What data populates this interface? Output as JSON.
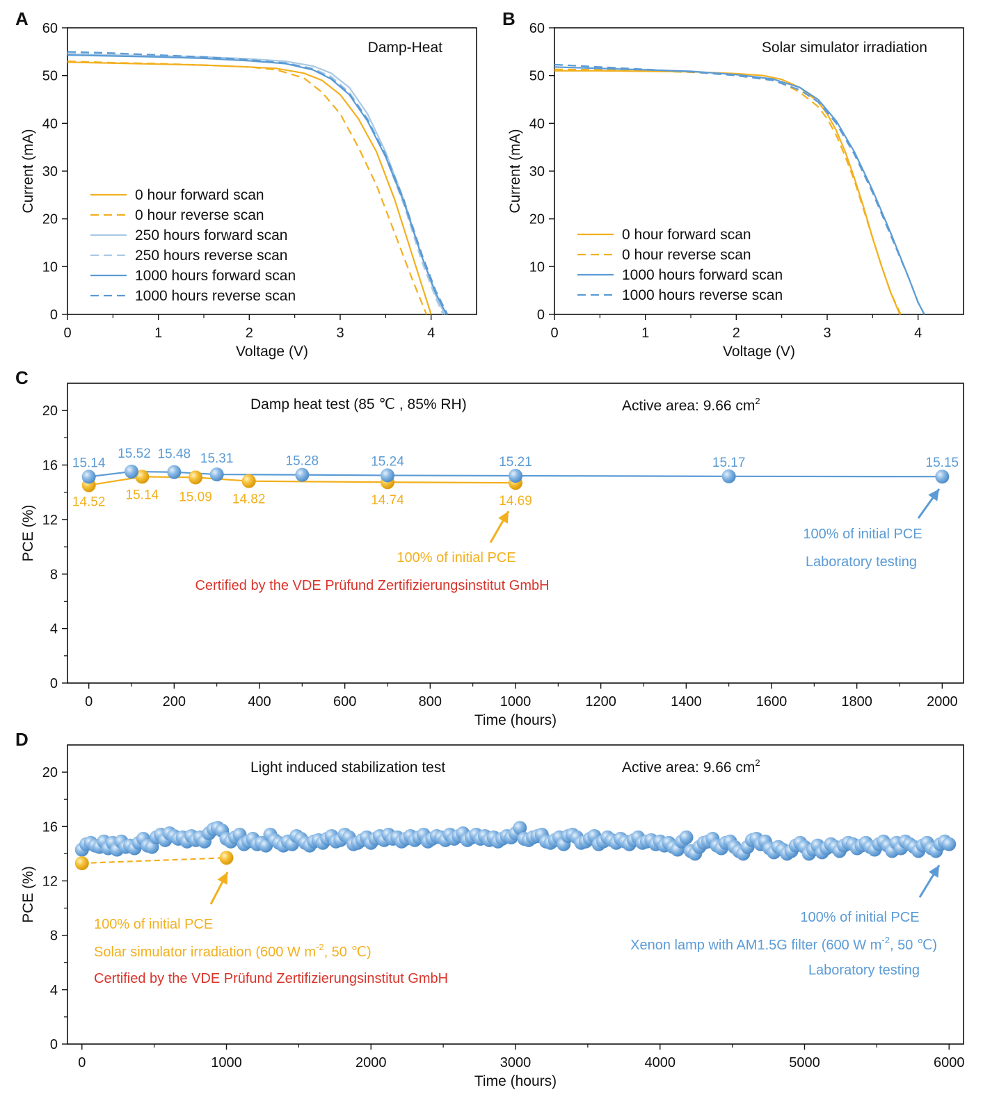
{
  "colors": {
    "yellow": "#f2b01e",
    "blue": "#5b9bd5",
    "lightblue": "#a9c9e4",
    "red": "#d9342b",
    "axis": "#111111"
  },
  "chart_data": [
    {
      "id": "A",
      "type": "line",
      "panel_label": "A",
      "title": "Damp-Heat",
      "xlabel": "Voltage (V)",
      "ylabel": "Current (mA)",
      "xlim": [
        0,
        4.5
      ],
      "ylim": [
        0,
        60
      ],
      "xticks": [
        0,
        1,
        2,
        3,
        4
      ],
      "yticks": [
        0,
        10,
        20,
        30,
        40,
        50,
        60
      ],
      "grid": false,
      "legend_position": "bottom-left",
      "series": [
        {
          "name": "0 hour forward scan",
          "color": "yellow",
          "dash": false,
          "x": [
            0,
            0.5,
            1,
            1.5,
            2,
            2.3,
            2.6,
            2.8,
            3.0,
            3.2,
            3.4,
            3.6,
            3.8,
            3.9,
            4.0
          ],
          "y": [
            52.8,
            52.6,
            52.4,
            52.2,
            51.8,
            51.5,
            50.5,
            49.0,
            46.0,
            41.0,
            34.0,
            24.0,
            12.0,
            6.0,
            0
          ]
        },
        {
          "name": "0 hour reverse scan",
          "color": "yellow",
          "dash": true,
          "x": [
            0,
            0.5,
            1,
            1.5,
            2,
            2.3,
            2.6,
            2.8,
            3.0,
            3.2,
            3.4,
            3.6,
            3.8,
            3.95
          ],
          "y": [
            53.0,
            52.7,
            52.5,
            52.2,
            51.8,
            51.2,
            49.5,
            46.5,
            42.0,
            35.0,
            27.0,
            17.0,
            7.0,
            0
          ]
        },
        {
          "name": "250 hours forward scan",
          "color": "lightblue",
          "dash": false,
          "x": [
            0,
            0.5,
            1,
            1.5,
            2,
            2.4,
            2.7,
            2.9,
            3.1,
            3.3,
            3.5,
            3.7,
            3.9,
            4.05,
            4.15
          ],
          "y": [
            54.5,
            54.3,
            54.1,
            53.9,
            53.5,
            53.0,
            52.0,
            50.5,
            47.5,
            42.0,
            34.0,
            24.0,
            12.0,
            4.0,
            0
          ]
        },
        {
          "name": "250 hours reverse scan",
          "color": "lightblue",
          "dash": true,
          "x": [
            0,
            0.5,
            1,
            1.5,
            2,
            2.4,
            2.7,
            2.9,
            3.1,
            3.3,
            3.5,
            3.7,
            3.9,
            4.05,
            4.13
          ],
          "y": [
            54.8,
            54.5,
            54.2,
            53.9,
            53.4,
            52.7,
            51.5,
            49.8,
            46.5,
            41.0,
            33.0,
            23.0,
            11.0,
            3.5,
            0
          ]
        },
        {
          "name": "1000 hours forward scan",
          "color": "blue",
          "dash": false,
          "x": [
            0,
            0.5,
            1,
            1.5,
            2,
            2.4,
            2.7,
            2.9,
            3.1,
            3.3,
            3.5,
            3.7,
            3.9,
            4.05,
            4.17
          ],
          "y": [
            54.3,
            54.1,
            53.9,
            53.6,
            53.1,
            52.5,
            51.2,
            49.3,
            46.0,
            40.5,
            33.0,
            23.5,
            12.0,
            4.5,
            0
          ]
        },
        {
          "name": "1000 hours reverse scan",
          "color": "blue",
          "dash": true,
          "x": [
            0,
            0.5,
            1,
            1.5,
            2,
            2.4,
            2.7,
            2.9,
            3.1,
            3.3,
            3.5,
            3.7,
            3.9,
            4.05,
            4.18
          ],
          "y": [
            55.0,
            54.7,
            54.3,
            53.9,
            53.3,
            52.6,
            51.3,
            49.4,
            46.2,
            40.8,
            33.4,
            24.0,
            12.5,
            5.0,
            0
          ]
        }
      ]
    },
    {
      "id": "B",
      "type": "line",
      "panel_label": "B",
      "title": "Solar simulator  irradiation",
      "xlabel": "Voltage (V)",
      "ylabel": "Current (mA)",
      "xlim": [
        0,
        4.5
      ],
      "ylim": [
        0,
        60
      ],
      "xticks": [
        0,
        1,
        2,
        3,
        4
      ],
      "yticks": [
        0,
        10,
        20,
        30,
        40,
        50,
        60
      ],
      "grid": false,
      "legend_position": "bottom-left",
      "series": [
        {
          "name": "0 hour forward scan",
          "color": "yellow",
          "dash": false,
          "x": [
            0,
            0.5,
            1,
            1.5,
            2,
            2.3,
            2.5,
            2.7,
            2.9,
            3.0,
            3.1,
            3.2,
            3.3,
            3.4,
            3.5,
            3.6,
            3.7,
            3.8
          ],
          "y": [
            51.0,
            51.0,
            50.9,
            50.8,
            50.4,
            50.0,
            49.2,
            47.5,
            44.5,
            42.0,
            38.5,
            34.0,
            28.5,
            22.5,
            16.0,
            10.0,
            4.5,
            0
          ]
        },
        {
          "name": "0 hour reverse scan",
          "color": "yellow",
          "dash": true,
          "x": [
            0,
            0.5,
            1,
            1.5,
            2,
            2.3,
            2.5,
            2.7,
            2.9,
            3.0,
            3.1,
            3.2,
            3.3,
            3.4,
            3.5,
            3.6,
            3.7,
            3.81
          ],
          "y": [
            51.3,
            51.2,
            51.0,
            50.7,
            50.2,
            49.5,
            48.5,
            46.5,
            43.5,
            41.0,
            37.5,
            33.0,
            28.0,
            22.0,
            16.0,
            10.0,
            4.5,
            0
          ]
        },
        {
          "name": "1000 hours forward scan",
          "color": "blue",
          "dash": false,
          "x": [
            0,
            0.5,
            1,
            1.5,
            2,
            2.4,
            2.7,
            2.9,
            3.1,
            3.3,
            3.5,
            3.7,
            3.9,
            4.0,
            4.07
          ],
          "y": [
            51.8,
            51.5,
            51.2,
            50.9,
            50.2,
            49.3,
            47.5,
            45.0,
            40.5,
            34.0,
            26.0,
            17.0,
            7.5,
            2.5,
            0
          ]
        },
        {
          "name": "1000 hours reverse scan",
          "color": "blue",
          "dash": true,
          "x": [
            0,
            0.5,
            1,
            1.5,
            2,
            2.4,
            2.7,
            2.9,
            3.1,
            3.3,
            3.5,
            3.7,
            3.9,
            4.0,
            4.07
          ],
          "y": [
            52.3,
            51.8,
            51.3,
            50.8,
            50.0,
            49.0,
            47.0,
            44.5,
            40.0,
            33.5,
            25.5,
            16.5,
            7.5,
            2.5,
            0
          ]
        }
      ]
    },
    {
      "id": "C",
      "type": "scatter",
      "panel_label": "C",
      "xlabel": "Time (hours)",
      "ylabel": "PCE (%)",
      "xlim": [
        -50,
        2050
      ],
      "ylim": [
        0,
        22
      ],
      "xticks": [
        0,
        200,
        400,
        600,
        800,
        1000,
        1200,
        1400,
        1600,
        1800,
        2000
      ],
      "yticks": [
        0,
        4,
        8,
        12,
        16,
        20
      ],
      "grid": false,
      "title_left": "Damp heat test (85 ℃ , 85% RH)",
      "title_right_main": "Active area: 9.66 cm",
      "title_right_sup": "2",
      "series": [
        {
          "name": "Certified",
          "color": "yellow",
          "x": [
            0,
            125,
            250,
            375,
            700,
            1000
          ],
          "y": [
            14.52,
            15.14,
            15.09,
            14.82,
            14.74,
            14.69
          ],
          "labels": [
            "14.52",
            "15.14",
            "15.09",
            "14.82",
            "14.74",
            "14.69"
          ]
        },
        {
          "name": "Laboratory",
          "color": "blue",
          "x": [
            0,
            100,
            200,
            300,
            500,
            700,
            1000,
            1500,
            2000
          ],
          "y": [
            15.14,
            15.52,
            15.48,
            15.31,
            15.28,
            15.24,
            15.21,
            15.17,
            15.15
          ],
          "labels": [
            "15.14",
            "15.52",
            "15.48",
            "15.31",
            "15.28",
            "15.24",
            "15.21",
            "15.17",
            "15.15"
          ]
        }
      ],
      "annotations": {
        "yellow_pce": "100% of initial PCE",
        "certified": "Certified by the VDE Prüfund Zertifizierungsinstitut GmbH",
        "blue_pce": "100% of initial PCE",
        "lab": "Laboratory testing"
      }
    },
    {
      "id": "D",
      "type": "scatter",
      "panel_label": "D",
      "xlabel": "Time (hours)",
      "ylabel": "PCE (%)",
      "xlim": [
        -100,
        6100
      ],
      "ylim": [
        0,
        22
      ],
      "xticks": [
        0,
        1000,
        2000,
        3000,
        4000,
        5000,
        6000
      ],
      "yticks": [
        0,
        4,
        8,
        12,
        16,
        20
      ],
      "grid": false,
      "title_left": "Light induced stabilization test",
      "title_right_main": "Active area: 9.66 cm",
      "title_right_sup": "2",
      "series": [
        {
          "name": "Certified",
          "color": "yellow",
          "x": [
            0,
            1000
          ],
          "y": [
            13.3,
            13.7
          ]
        },
        {
          "name": "Laboratory",
          "color": "blue",
          "x_start": 0,
          "x_end": 6000,
          "y": [
            14.3,
            14.7,
            14.8,
            14.6,
            14.5,
            14.9,
            14.4,
            14.8,
            14.3,
            14.9,
            14.5,
            14.6,
            14.4,
            14.8,
            15.1,
            14.6,
            14.5,
            15.2,
            15.4,
            15.0,
            15.5,
            15.3,
            15.1,
            15.2,
            14.9,
            15.3,
            15.0,
            15.2,
            14.9,
            15.5,
            15.8,
            15.9,
            15.7,
            15.1,
            14.9,
            15.2,
            15.4,
            14.7,
            14.9,
            15.1,
            14.7,
            14.8,
            14.6,
            15.4,
            15.0,
            14.8,
            14.6,
            14.9,
            14.7,
            15.3,
            15.1,
            14.8,
            14.6,
            14.9,
            15.0,
            14.8,
            15.1,
            15.3,
            14.9,
            15.0,
            15.4,
            15.2,
            14.7,
            14.8,
            15.0,
            15.2,
            14.8,
            15.1,
            15.3,
            15.0,
            15.4,
            15.1,
            15.2,
            14.9,
            15.1,
            15.3,
            15.0,
            15.2,
            15.4,
            14.9,
            15.1,
            15.3,
            15.2,
            15.0,
            15.4,
            15.1,
            15.3,
            15.5,
            15.0,
            15.2,
            15.4,
            15.1,
            15.3,
            15.0,
            15.2,
            14.9,
            15.1,
            15.3,
            15.2,
            15.5,
            15.9,
            15.1,
            15.0,
            15.2,
            15.3,
            15.4,
            14.9,
            14.8,
            15.0,
            15.2,
            14.7,
            15.3,
            15.4,
            15.2,
            14.8,
            14.9,
            15.1,
            15.3,
            14.7,
            14.9,
            15.2,
            15.0,
            14.8,
            15.1,
            14.9,
            14.7,
            15.0,
            15.2,
            14.8,
            14.9,
            15.0,
            14.7,
            14.9,
            14.6,
            14.8,
            14.5,
            14.3,
            14.9,
            15.2,
            14.2,
            14.0,
            14.5,
            14.8,
            14.9,
            15.1,
            14.6,
            14.4,
            14.8,
            14.9,
            14.5,
            14.2,
            14.0,
            14.5,
            15.0,
            15.1,
            14.7,
            14.9,
            14.4,
            14.1,
            14.5,
            14.3,
            14.0,
            14.2,
            14.6,
            14.8,
            14.5,
            14.0,
            14.3,
            14.6,
            14.1,
            14.4,
            14.7,
            14.5,
            14.2,
            14.6,
            14.8,
            14.7,
            14.4,
            14.6,
            14.8,
            14.5,
            14.3,
            14.7,
            14.9,
            14.6,
            14.2,
            14.8,
            14.4,
            14.9,
            14.7,
            14.5,
            14.2,
            14.6,
            14.8,
            14.4,
            14.2,
            14.7,
            14.9,
            14.7
          ]
        }
      ],
      "annotations": {
        "yellow_pce": "100% of initial PCE",
        "yellow_irr_pre": "Solar simulator irradiation (600 W m",
        "yellow_irr_sup": "-2",
        "yellow_irr_post": ", 50 ℃)",
        "certified": "Certified by the VDE Prüfund Zertifizierungsinstitut GmbH",
        "blue_pce": "100% of initial PCE",
        "blue_lamp_pre": "Xenon lamp with AM1.5G filter (600 W m",
        "blue_lamp_sup": "-2",
        "blue_lamp_post": ", 50 ℃)",
        "lab": "Laboratory testing"
      }
    }
  ]
}
